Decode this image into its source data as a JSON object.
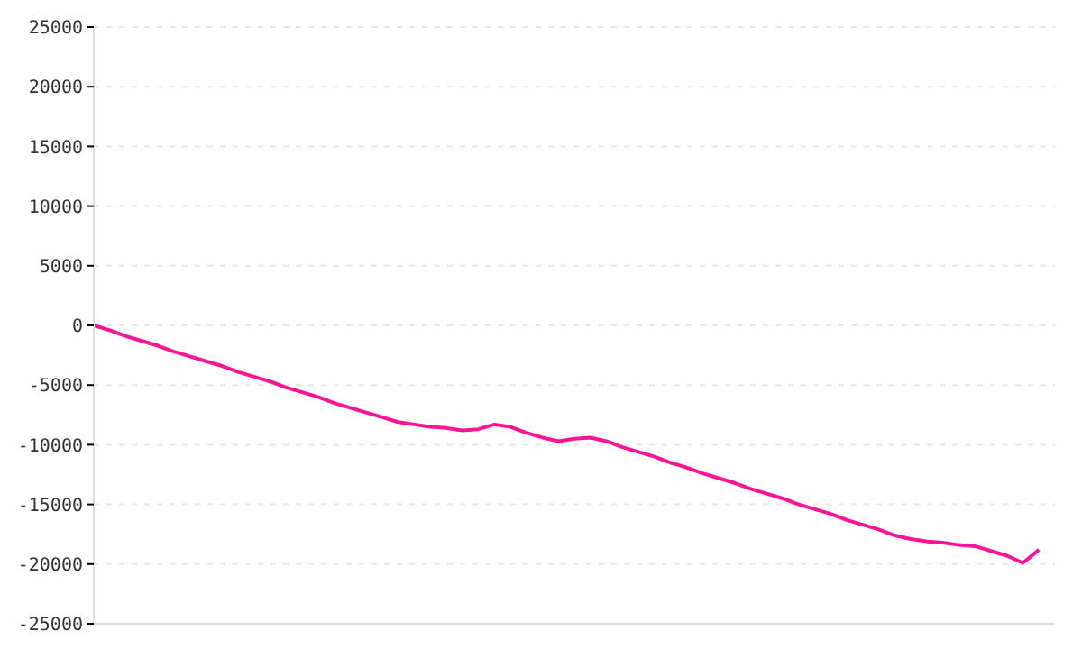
{
  "chart_data": {
    "type": "line",
    "categories": [
      null,
      null,
      null,
      null,
      null,
      null,
      null,
      null,
      null,
      null,
      null,
      null,
      null,
      null,
      null,
      null,
      null,
      null,
      null,
      null,
      null,
      null,
      null,
      null,
      null,
      null,
      null,
      null,
      null,
      null,
      null,
      null,
      null,
      null,
      null,
      null,
      null,
      null,
      null,
      null,
      null,
      null,
      null,
      null,
      null,
      null,
      null,
      null,
      null,
      null,
      null,
      null,
      null,
      null,
      null,
      null,
      null,
      null,
      null,
      null,
      null
    ],
    "series": [
      {
        "color": "#ff1493",
        "values": [
          0,
          -400,
          -900,
          -1300,
          -1700,
          -2200,
          -2600,
          -3000,
          -3400,
          -3900,
          -4300,
          -4700,
          -5200,
          -5600,
          -6000,
          -6500,
          -6900,
          -7300,
          -7700,
          -8100,
          -8300,
          -8500,
          -8600,
          -8800,
          -8700,
          -8300,
          -8500,
          -9000,
          -9400,
          -9700,
          -9500,
          -9400,
          -9700,
          -10200,
          -10600,
          -11000,
          -11500,
          -11900,
          -12400,
          -12800,
          -13200,
          -13700,
          -14100,
          -14500,
          -15000,
          -15400,
          -15800,
          -16300,
          -16700,
          -17100,
          -17600,
          -17900,
          -18100,
          -18200,
          -18400,
          -18500,
          -18900,
          -19300,
          -19900,
          -18800,
          null
        ]
      }
    ],
    "ylim": [
      -25000,
      25000
    ],
    "yticks": [
      -25000,
      -20000,
      -15000,
      -10000,
      -5000,
      0,
      5000,
      10000,
      15000,
      20000,
      25000
    ],
    "grid": "y",
    "tick_labels": "y",
    "marker": "none",
    "line_style": "solid",
    "legend": false
  }
}
